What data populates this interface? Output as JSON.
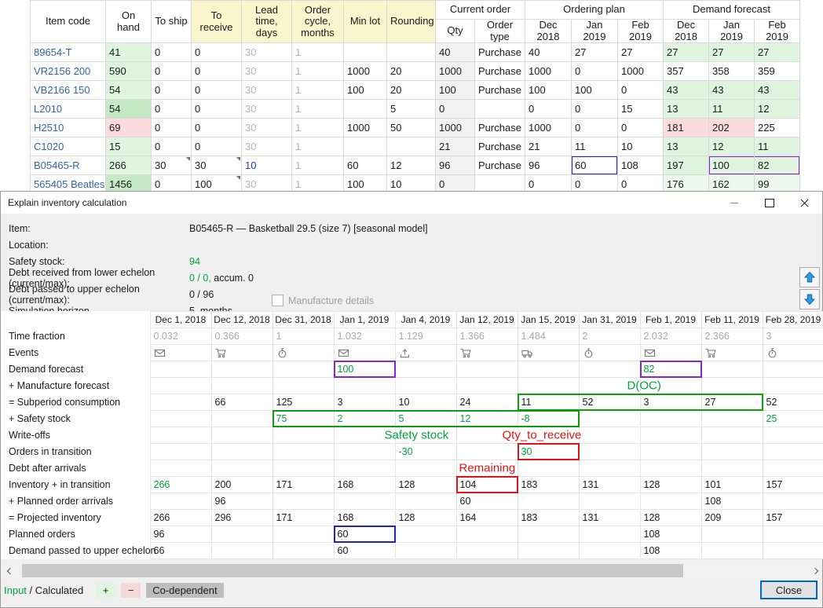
{
  "top_table": {
    "headers": [
      "Item code",
      "On hand",
      "To ship",
      "To receive",
      "Lead time,\ndays",
      "Order cycle,\nmonths",
      "Min lot",
      "Rounding"
    ],
    "yellow_headers": [
      3,
      4,
      5,
      6,
      7
    ],
    "groups": [
      {
        "label": "Current order",
        "span": 2
      },
      {
        "label": "Ordering plan",
        "span": 3
      },
      {
        "label": "Demand forecast",
        "span": 3
      }
    ],
    "sub_headers": [
      "Qty",
      "Order type",
      "Dec 2018",
      "Jan 2019",
      "Feb 2019",
      "Dec 2018",
      "Jan 2019",
      "Feb 2019"
    ],
    "rows": [
      [
        "89654-T",
        {
          "t": "41",
          "bg": "g1"
        },
        "0",
        "0",
        {
          "t": "30",
          "cls": "graytxt"
        },
        {
          "t": "1",
          "cls": "graytxt"
        },
        "",
        "",
        "40",
        "Purchase",
        "40",
        "27",
        "27",
        {
          "t": "27",
          "bg": "g1"
        },
        {
          "t": "27",
          "bg": "g1"
        },
        {
          "t": "27",
          "bg": "g1"
        }
      ],
      [
        "VR2156 200",
        {
          "t": "590",
          "bg": "g1"
        },
        "0",
        "0",
        {
          "t": "30",
          "cls": "graytxt"
        },
        {
          "t": "1",
          "cls": "graytxt"
        },
        "1000",
        "20",
        "1000",
        "Purchase",
        "1000",
        "0",
        "1000",
        "357",
        "358",
        "359"
      ],
      [
        "VB2166 150",
        {
          "t": "54",
          "bg": "g1"
        },
        "0",
        "0",
        {
          "t": "30",
          "cls": "graytxt"
        },
        {
          "t": "1",
          "cls": "graytxt"
        },
        "100",
        "20",
        "100",
        "Purchase",
        "100",
        "100",
        "0",
        {
          "t": "43",
          "bg": "g1"
        },
        {
          "t": "43",
          "bg": "g1"
        },
        {
          "t": "43",
          "bg": "g1"
        }
      ],
      [
        "L2010",
        {
          "t": "54",
          "bg": "g2"
        },
        "0",
        "0",
        {
          "t": "30",
          "cls": "graytxt"
        },
        {
          "t": "1",
          "cls": "graytxt"
        },
        "",
        "5",
        "0",
        "",
        "0",
        "0",
        "15",
        {
          "t": "13",
          "bg": "g1"
        },
        {
          "t": "11",
          "bg": "g1"
        },
        {
          "t": "12",
          "bg": "g1"
        }
      ],
      [
        "H2510",
        {
          "t": "69",
          "bg": "pk"
        },
        "0",
        "0",
        {
          "t": "30",
          "cls": "graytxt"
        },
        {
          "t": "1",
          "cls": "graytxt"
        },
        "1000",
        "50",
        "1000",
        "Purchase",
        "1000",
        "0",
        "0",
        {
          "t": "181",
          "bg": "pk"
        },
        {
          "t": "202",
          "bg": "pk"
        },
        "225"
      ],
      [
        "C1020",
        {
          "t": "15",
          "bg": "g1"
        },
        "0",
        "0",
        {
          "t": "30",
          "cls": "graytxt"
        },
        {
          "t": "1",
          "cls": "graytxt"
        },
        "",
        "",
        "21",
        "Purchase",
        "21",
        "11",
        "10",
        {
          "t": "13",
          "bg": "g1"
        },
        {
          "t": "12",
          "bg": "g1"
        },
        {
          "t": "11",
          "bg": "g1"
        }
      ],
      [
        "B05465-R",
        {
          "t": "266",
          "bg": "g1"
        },
        {
          "t": "30",
          "mark": true
        },
        {
          "t": "30",
          "mark": true
        },
        {
          "t": "10",
          "cls": "bluetxt"
        },
        {
          "t": "1",
          "cls": "graytxt"
        },
        "60",
        "12",
        "96",
        "Purchase",
        "96",
        {
          "t": "60",
          "box": "blue"
        },
        "108",
        {
          "t": "197",
          "bg": "g1"
        },
        {
          "t": "100",
          "bg": "g1",
          "box": "purple:l"
        },
        {
          "t": "82",
          "bg": "g1",
          "box": "purple:r"
        }
      ],
      [
        "565405 Beatles ...",
        {
          "t": "1456",
          "bg": "g2"
        },
        "0",
        {
          "t": "100",
          "mark": true
        },
        {
          "t": "30",
          "cls": "graytxt"
        },
        {
          "t": "1",
          "cls": "graytxt"
        },
        "100",
        "10",
        "0",
        "",
        "0",
        "0",
        "0",
        {
          "t": "176",
          "bg": "g3"
        },
        {
          "t": "162",
          "bg": "g3"
        },
        {
          "t": "99",
          "bg": "g3"
        }
      ]
    ]
  },
  "dialog": {
    "title": "Explain inventory calculation",
    "info": [
      {
        "label": "Item:",
        "parts": [
          {
            "t": "B05465-R — Basketball 29.5 (size 7) [seasonal model]"
          }
        ]
      },
      {
        "label": "Location:",
        "parts": []
      },
      {
        "label": "Safety stock:",
        "parts": [
          {
            "t": "94",
            "c": "green"
          }
        ]
      },
      {
        "label": "Debt received from lower echelon (current/max):",
        "parts": [
          {
            "t": "0 / 0,",
            "c": "green"
          },
          {
            "t": " accum. 0"
          }
        ]
      },
      {
        "label": "Debt passed to upper echelon (current/max):",
        "parts": [
          {
            "t": "0 / 96"
          }
        ]
      },
      {
        "label": "Simulation horizon",
        "parts": [
          {
            "t": "5  months"
          }
        ]
      }
    ],
    "manufacture_checkbox": "Manufacture details",
    "close_button": "Close",
    "legend": {
      "input": "Input",
      "calculated": " / Calculated",
      "plus": "+",
      "minus": "−",
      "codependent": "Co-dependent"
    }
  },
  "calc_table": {
    "dates": [
      "Dec 1, 2018",
      "Dec 12, 2018",
      "Dec 31, 2018",
      "Jan 1, 2019",
      "Jan 4, 2019",
      "Jan 12, 2019",
      "Jan 15, 2019",
      "Jan 31, 2019",
      "Feb 1, 2019",
      "Feb 11, 2019",
      "Feb 28, 2019"
    ],
    "rows": [
      {
        "label": "Time fraction",
        "cells": [
          {
            "t": "0.032",
            "cls": "gray"
          },
          {
            "t": "0.366",
            "cls": "gray"
          },
          {
            "t": "1",
            "cls": "gray"
          },
          {
            "t": "1.032",
            "cls": "gray"
          },
          {
            "t": "1.129",
            "cls": "gray"
          },
          {
            "t": "1.366",
            "cls": "gray"
          },
          {
            "t": "1.484",
            "cls": "gray"
          },
          {
            "t": "2",
            "cls": "gray"
          },
          {
            "t": "2.032",
            "cls": "gray"
          },
          {
            "t": "2.366",
            "cls": "gray"
          },
          {
            "t": "3",
            "cls": "gray"
          }
        ]
      },
      {
        "label": "Events",
        "cells": [
          {
            "icon": "envelope"
          },
          {
            "icon": "cart"
          },
          {
            "icon": "stopwatch"
          },
          {
            "icon": "envelope"
          },
          {
            "icon": "upload"
          },
          {
            "icon": "cart"
          },
          {
            "icon": "truck"
          },
          {
            "icon": "stopwatch"
          },
          {
            "icon": "envelope"
          },
          {
            "icon": "cart"
          },
          {
            "icon": "stopwatch"
          }
        ]
      },
      {
        "label": "Demand forecast",
        "cells": [
          null,
          null,
          null,
          {
            "t": "100",
            "cls": "green",
            "box": "purple"
          },
          null,
          null,
          null,
          null,
          {
            "t": "82",
            "cls": "green",
            "box": "purple"
          },
          null,
          null
        ]
      },
      {
        "label": "+ Manufacture forecast",
        "cells": [
          null,
          null,
          null,
          null,
          null,
          null,
          null,
          null,
          null,
          null,
          null
        ]
      },
      {
        "label": "= Subperiod consumption",
        "cells": [
          null,
          "66",
          "125",
          "3",
          "10",
          "24",
          {
            "t": "11",
            "box": "green:l"
          },
          {
            "t": "52",
            "box": "green:m"
          },
          {
            "t": "3",
            "box": "green:m"
          },
          {
            "t": "27",
            "box": "green:r"
          },
          "52"
        ]
      },
      {
        "label": "+ Safety stock",
        "cells": [
          null,
          null,
          {
            "t": "75",
            "cls": "green",
            "box": "green:l"
          },
          {
            "t": "2",
            "cls": "green",
            "box": "green:m"
          },
          {
            "t": "5",
            "cls": "green",
            "box": "green:m"
          },
          {
            "t": "12",
            "cls": "green",
            "box": "green:m"
          },
          {
            "t": "-8",
            "cls": "green",
            "box": "green:r"
          },
          null,
          null,
          null,
          {
            "t": "25",
            "cls": "green"
          }
        ]
      },
      {
        "label": "Write-offs",
        "cells": [
          null,
          null,
          null,
          null,
          null,
          null,
          null,
          null,
          null,
          null,
          null
        ]
      },
      {
        "label": "Orders in transition",
        "cells": [
          null,
          null,
          null,
          null,
          {
            "t": "-30",
            "cls": "green"
          },
          null,
          {
            "t": "30",
            "cls": "green",
            "box": "red"
          },
          null,
          null,
          null,
          null
        ]
      },
      {
        "label": "Debt after arrivals",
        "cells": [
          null,
          null,
          null,
          null,
          null,
          null,
          null,
          null,
          null,
          null,
          null
        ]
      },
      {
        "label": "Inventory + in transition",
        "cells": [
          {
            "t": "266",
            "cls": "green"
          },
          "200",
          "171",
          "168",
          "128",
          {
            "t": "104",
            "box": "red"
          },
          "183",
          "131",
          "128",
          "101",
          "157"
        ]
      },
      {
        "label": "+ Planned order arrivals",
        "cells": [
          null,
          "96",
          null,
          null,
          null,
          "60",
          null,
          null,
          null,
          "108",
          null
        ]
      },
      {
        "label": "= Projected inventory",
        "cells": [
          "266",
          "296",
          "171",
          "168",
          "128",
          "164",
          "183",
          "131",
          "128",
          "209",
          "157"
        ]
      },
      {
        "label": "Planned orders",
        "cells": [
          "96",
          null,
          null,
          {
            "t": "60",
            "box": "blue"
          },
          null,
          null,
          null,
          null,
          "108",
          null,
          null
        ]
      },
      {
        "label": "Demand passed to upper echelon",
        "cells": [
          "66",
          null,
          null,
          "60",
          null,
          null,
          null,
          null,
          "108",
          null,
          null
        ]
      }
    ],
    "annotations": [
      {
        "id": "safety-stock",
        "text": "Safety stock",
        "color": "green",
        "row": 6,
        "col": 4
      },
      {
        "id": "qty-to-receive",
        "text": "Qty_to_receive",
        "color": "red",
        "row": 6,
        "col": 6
      },
      {
        "id": "remaining",
        "text": "Remaining",
        "color": "red",
        "row": 8,
        "col": 5
      },
      {
        "id": "doc",
        "text": "D(OC)",
        "color": "green",
        "row": 3,
        "col": 7
      }
    ]
  },
  "colors": {
    "input_green": "#00A33C",
    "calculated_black": "#1A1A1A",
    "increase_bg": "#DFF5DF",
    "decrease_bg": "#F6D8D8",
    "codependent_bg": "#BDBDBD",
    "box_purple": "#8B22D8",
    "box_blue": "#2222CC",
    "box_red": "#E51414",
    "box_green": "#0AA00A",
    "header_yellow": "#FBF5CD"
  }
}
